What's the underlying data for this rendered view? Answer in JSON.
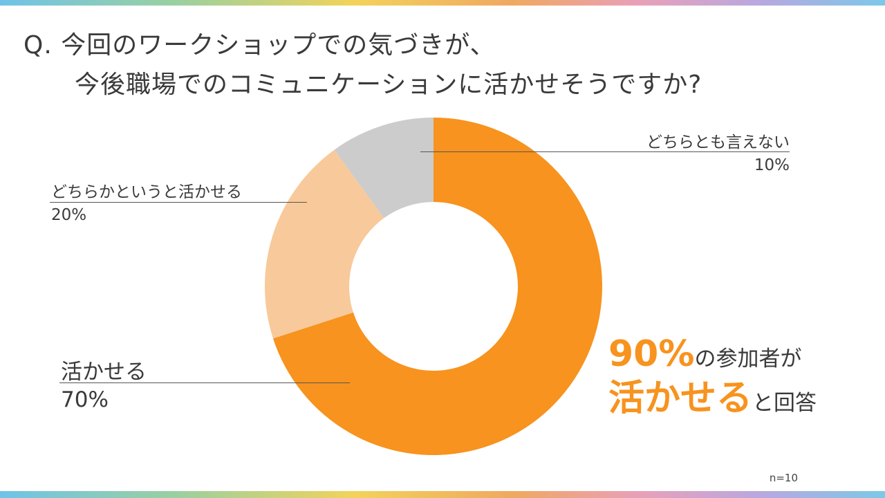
{
  "question": {
    "line1": "Q. 今回のワークショップでの気づきが、",
    "line2": "今後職場でのコミュニケーションに活かせそうですか?"
  },
  "chart_data": {
    "type": "pie",
    "variant": "donut",
    "categories": [
      "活かせる",
      "どちらかというと活かせる",
      "どちらとも言えない"
    ],
    "values": [
      70,
      20,
      10
    ],
    "labels": [
      "70%",
      "20%",
      "10%"
    ],
    "colors": [
      "#f7931e",
      "#f8c99a",
      "#cccccc"
    ]
  },
  "callout": {
    "row1_accent": "90%",
    "row1_text": "の参加者が",
    "row2_accent": "活かせる",
    "row2_text": "と回答"
  },
  "sample_note": "n=10"
}
